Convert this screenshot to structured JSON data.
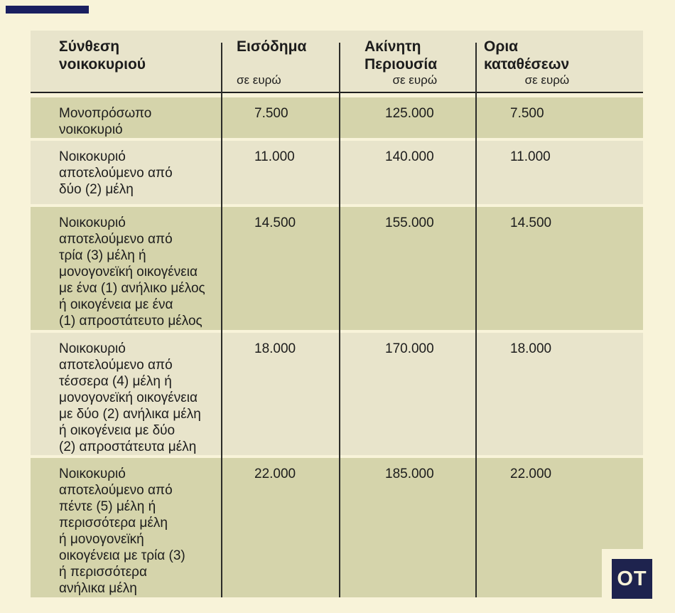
{
  "colors": {
    "page_bg": "#f8f3d9",
    "row_olive": "#d5d4ab",
    "row_beige": "#e8e4cb",
    "accent_navy": "#1a1f60",
    "logo_navy": "#1e234e",
    "divider_black": "#2b2b28",
    "text": "#1c1c1c"
  },
  "logo": {
    "text": "OT"
  },
  "chart_data": {
    "type": "table",
    "title": "",
    "columns": [
      {
        "title": "Σύνθεση\nνοικοκυριού",
        "subtitle": ""
      },
      {
        "title": "Εισόδημα",
        "subtitle": "σε ευρώ"
      },
      {
        "title": "Ακίνητη\nΠεριουσία",
        "subtitle": "σε ευρώ"
      },
      {
        "title": "Ορια\nκαταθέσεων",
        "subtitle": "σε ευρώ"
      }
    ],
    "rows": [
      {
        "household": "Μονοπρόσωπο\nνοικοκυριό",
        "income": "7.500",
        "property": "125.000",
        "deposits": "7.500"
      },
      {
        "household": "Νοικοκυριό\nαποτελούμενο από\nδύο (2) μέλη",
        "income": "11.000",
        "property": "140.000",
        "deposits": "11.000"
      },
      {
        "household": "Νοικοκυριό\nαποτελούμενο από\nτρία (3) μέλη ή\nμονογονεϊκή οικογένεια\nμε ένα (1) ανήλικο μέλος\nή οικογένεια με ένα\n(1) απροστάτευτο μέλος",
        "income": "14.500",
        "property": "155.000",
        "deposits": "14.500"
      },
      {
        "household": "Νοικοκυριό\nαποτελούμενο από\nτέσσερα (4) μέλη ή\nμονογονεϊκή οικογένεια\nμε δύο (2) ανήλικα μέλη\nή οικογένεια με δύο\n(2) απροστάτευτα μέλη",
        "income": "18.000",
        "property": "170.000",
        "deposits": "18.000"
      },
      {
        "household": "Νοικοκυριό\nαποτελούμενο από\nπέντε (5) μέλη ή\nπερισσότερα μέλη\nή μονογονεϊκή\nοικογένεια με τρία (3)\nή περισσότερα\nανήλικα μέλη",
        "income": "22.000",
        "property": "185.000",
        "deposits": "22.000"
      }
    ]
  }
}
